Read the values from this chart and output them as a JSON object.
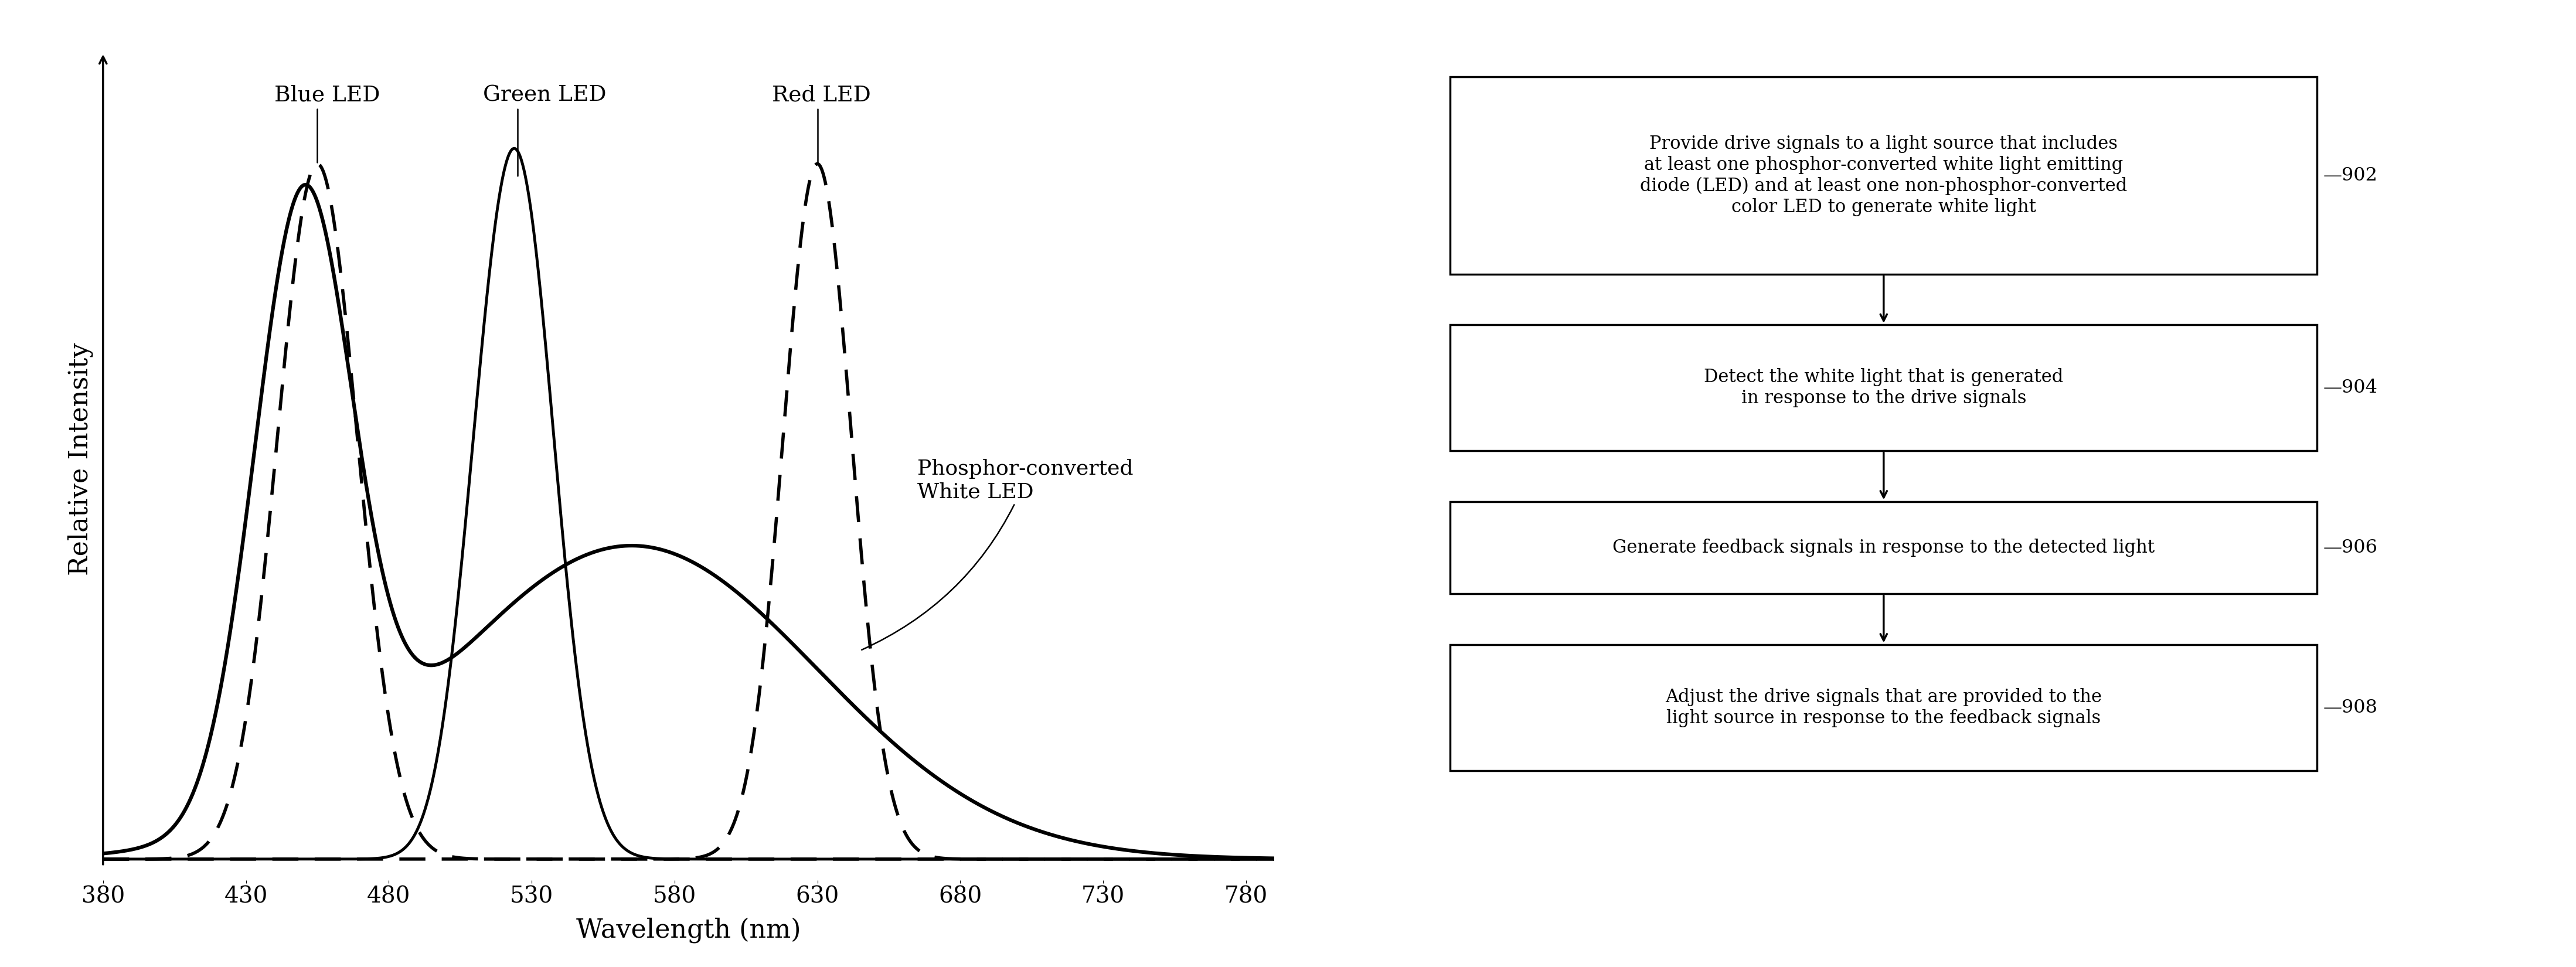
{
  "xlabel": "Wavelength (nm)",
  "ylabel": "Relative Intensity",
  "x_ticks": [
    380,
    430,
    480,
    530,
    580,
    630,
    680,
    730,
    780
  ],
  "blue_led_label": "Blue LED",
  "green_led_label": "Green LED",
  "red_led_label": "Red LED",
  "phosphor_label": "Phosphor-converted\nWhite LED",
  "flowchart_boxes": [
    {
      "id": "902",
      "text": "Provide drive signals to a light source that includes\nat least one phosphor-converted white light emitting\ndiode (LED) and at least one non-phosphor-converted\ncolor LED to generate white light"
    },
    {
      "id": "904",
      "text": "Detect the white light that is generated\nin response to the drive signals"
    },
    {
      "id": "906",
      "text": "Generate feedback signals in response to the detected light"
    },
    {
      "id": "908",
      "text": "Adjust the drive signals that are provided to the\nlight source in response to the feedback signals"
    }
  ],
  "background_color": "#ffffff"
}
